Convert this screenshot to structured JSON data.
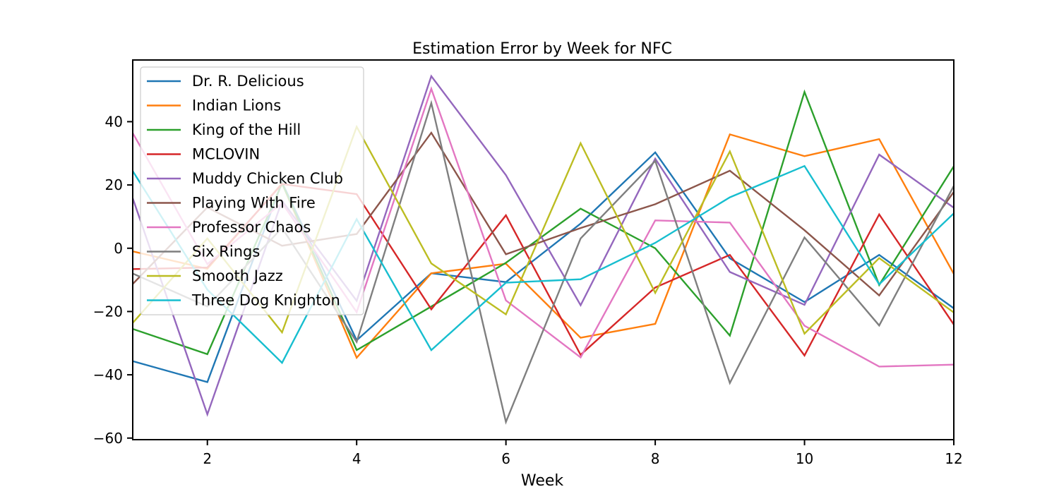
{
  "chart_data": {
    "type": "line",
    "title": "Estimation Error by Week for NFC",
    "xlabel": "Week",
    "ylabel": "",
    "xlim": [
      1,
      12
    ],
    "ylim": [
      -60.5,
      59.5
    ],
    "xticks": [
      2,
      4,
      6,
      8,
      10,
      12
    ],
    "yticks": [
      -60,
      -40,
      -20,
      0,
      20,
      40
    ],
    "x": [
      1,
      2,
      3,
      4,
      5,
      6,
      7,
      8,
      9,
      10,
      11,
      12
    ],
    "grid": false,
    "legend_position": "upper-left",
    "series": [
      {
        "name": "Dr. R. Delicious",
        "color": "#1f77b4",
        "values": [
          -35.7,
          -42.3,
          20.8,
          -29.1,
          -7.9,
          -10.7,
          7.8,
          30.3,
          -3.2,
          -17.0,
          -2.1,
          -19.0
        ]
      },
      {
        "name": "Indian Lions",
        "color": "#ff7f0e",
        "values": [
          -1.0,
          -6.5,
          20.5,
          -34.6,
          -7.9,
          -4.9,
          -28.3,
          -23.9,
          36.0,
          29.1,
          34.5,
          -8.1
        ]
      },
      {
        "name": "King of the Hill",
        "color": "#2ca02c",
        "values": [
          -25.5,
          -33.5,
          20.5,
          -32.2,
          -18.4,
          -4.6,
          12.5,
          0.0,
          -27.6,
          49.4,
          -11.6,
          25.9
        ]
      },
      {
        "name": "MCLOVIN",
        "color": "#d62728",
        "values": [
          -6.6,
          -6.1,
          20.3,
          17.1,
          -19.3,
          10.4,
          -33.7,
          -12.4,
          -2.1,
          -33.9,
          10.7,
          -24.1
        ]
      },
      {
        "name": "Muddy Chicken Club",
        "color": "#9467bd",
        "values": [
          15.8,
          -52.5,
          15.0,
          -16.6,
          54.4,
          23.1,
          -18.0,
          28.3,
          -7.5,
          -17.9,
          29.6,
          12.8
        ]
      },
      {
        "name": "Playing With Fire",
        "color": "#8c564b",
        "values": [
          -11.3,
          12.9,
          0.8,
          4.5,
          36.5,
          -1.9,
          6.4,
          13.9,
          24.5,
          5.7,
          -14.9,
          17.8
        ]
      },
      {
        "name": "Professor Chaos",
        "color": "#e377c2",
        "values": [
          36.4,
          -5.0,
          14.3,
          -20.2,
          50.4,
          -16.5,
          -34.5,
          8.8,
          8.1,
          -24.5,
          -37.4,
          -36.8
        ]
      },
      {
        "name": "Six Rings",
        "color": "#7f7f7f",
        "values": [
          -8.0,
          -18.4,
          6.4,
          -29.6,
          45.9,
          -54.9,
          3.1,
          27.6,
          -42.6,
          3.4,
          -24.4,
          19.7
        ]
      },
      {
        "name": "Smooth Jazz",
        "color": "#bcbd22",
        "values": [
          -23.6,
          3.1,
          -26.6,
          38.4,
          -4.8,
          -20.9,
          33.2,
          -14.1,
          30.6,
          -27.0,
          -3.1,
          -20.3
        ]
      },
      {
        "name": "Three Dog Knighton",
        "color": "#17becf",
        "values": [
          24.4,
          -13.1,
          -36.2,
          9.2,
          -32.2,
          -10.9,
          -9.8,
          1.7,
          16.1,
          26.0,
          -11.4,
          11.0
        ]
      }
    ]
  }
}
